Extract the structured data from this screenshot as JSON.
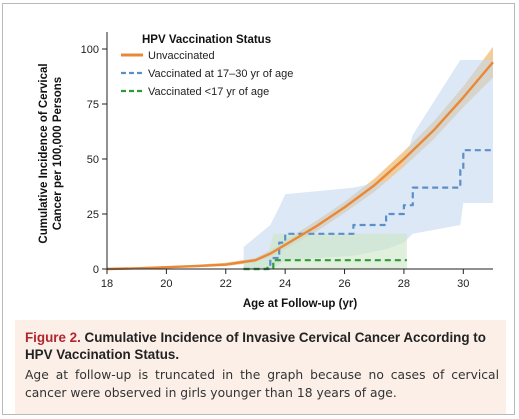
{
  "figure": {
    "label": "Figure 2.",
    "title": "Cumulative Incidence of Invasive Cervical Cancer According to HPV Vaccination Status.",
    "body": "Age at follow-up is truncated in the graph because no cases of cervical cancer were observed in girls younger than 18 years of age."
  },
  "chart_data": {
    "type": "line",
    "xlabel": "Age at Follow-up (yr)",
    "ylabel_lines": [
      "Cumulative Incidence of Cervical",
      "Cancer per 100,000 Persons"
    ],
    "xlim": [
      18,
      31
    ],
    "ylim": [
      0,
      105
    ],
    "xticks": [
      18,
      20,
      22,
      24,
      26,
      28,
      30
    ],
    "yticks": [
      0,
      25,
      50,
      75,
      100
    ],
    "grid": false,
    "legend": {
      "title": "HPV Vaccination Status",
      "position": "top-left"
    },
    "series": [
      {
        "name": "Unvaccinated",
        "color": "#e8893a",
        "band_color": "#f0c080",
        "style": "solid",
        "x": [
          18,
          19,
          20,
          21,
          22,
          23,
          23.5,
          24,
          25,
          26,
          27,
          28,
          29,
          30,
          31
        ],
        "y": [
          0,
          0.3,
          0.8,
          1.3,
          2,
          4,
          7,
          11,
          19,
          28,
          38,
          50,
          63,
          78,
          94
        ],
        "lower": [
          0,
          0.1,
          0.4,
          0.8,
          1.3,
          3,
          5.5,
          9,
          16.5,
          25.5,
          35,
          46.5,
          59,
          73.5,
          87
        ],
        "upper": [
          0,
          0.6,
          1.3,
          1.9,
          2.8,
          5,
          8.5,
          13,
          21.5,
          30.5,
          41,
          53.5,
          67,
          83,
          101
        ]
      },
      {
        "name": "Vaccinated at 17–30 yr of age",
        "color": "#5b8fc9",
        "band_color": "#c5d8ee",
        "style": "dashed",
        "x": [
          22.6,
          23.5,
          23.8,
          24.0,
          26.3,
          27.4,
          28.0,
          28.3,
          29.9,
          30.0,
          31
        ],
        "y": [
          0,
          5,
          12,
          16,
          20,
          25,
          29,
          37,
          45,
          54,
          54
        ],
        "lower": [
          0,
          0,
          2,
          4,
          6,
          9,
          12,
          16,
          20,
          30,
          30
        ],
        "upper": [
          10,
          20,
          28,
          34,
          37,
          40,
          47,
          61,
          95,
          95,
          95
        ]
      },
      {
        "name": "Vaccinated <17 yr of age",
        "color": "#2f9a3b",
        "band_color": "#cde6c4",
        "style": "dashed",
        "x": [
          22.6,
          23.4,
          23.6,
          28.1
        ],
        "y": [
          0,
          0.5,
          4,
          4
        ],
        "lower": [
          0,
          0,
          0,
          0
        ],
        "upper": [
          3,
          5,
          16,
          16
        ]
      }
    ]
  }
}
